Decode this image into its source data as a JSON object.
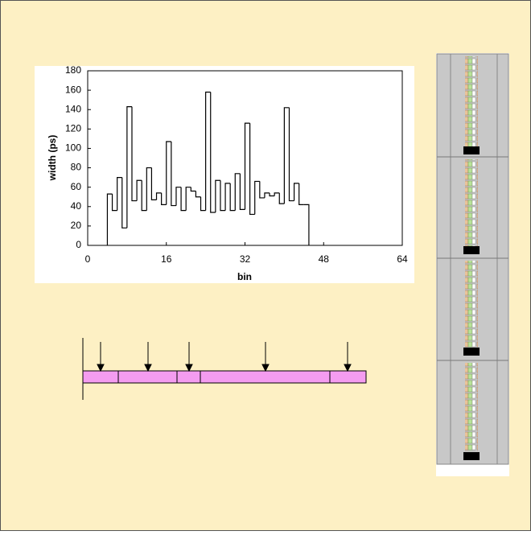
{
  "chart_data": {
    "type": "histogram",
    "xlabel": "bin",
    "ylabel": "width (ps)",
    "bins": [
      4,
      5,
      6,
      7,
      8,
      9,
      10,
      11,
      12,
      13,
      14,
      15,
      16,
      17,
      18,
      19,
      20,
      21,
      22,
      23,
      24,
      25,
      26,
      27,
      28,
      29,
      30,
      31,
      32,
      33,
      34,
      35,
      36,
      37,
      38,
      39,
      40,
      41,
      42,
      43,
      44,
      45
    ],
    "values": [
      53,
      36,
      70,
      18,
      143,
      46,
      67,
      36,
      80,
      47,
      54,
      42,
      107,
      41,
      60,
      36,
      60,
      56,
      50,
      36,
      158,
      34,
      67,
      36,
      64,
      36,
      74,
      37,
      126,
      32,
      66,
      49,
      54,
      51,
      54,
      43,
      142,
      46,
      64,
      42,
      42
    ],
    "color": "#000000",
    "xlim": [
      0,
      64
    ],
    "ylim": [
      0,
      180
    ],
    "xticks": [
      0,
      16,
      32,
      48,
      64
    ],
    "yticks": [
      0,
      20,
      40,
      60,
      80,
      100,
      120,
      140,
      160,
      180
    ]
  }
}
